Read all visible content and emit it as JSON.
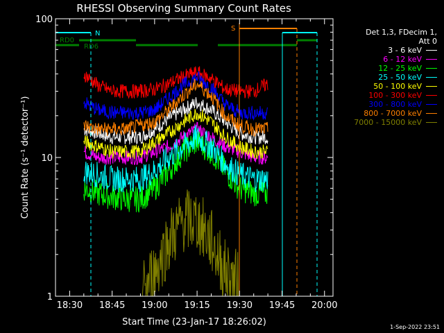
{
  "chart_data": {
    "type": "line",
    "title": "RHESSI Observing Summary Count Rates",
    "xlabel": "Start Time (23-Jan-17 18:26:02)",
    "ylabel": "Count Rate (s⁻¹ detector⁻¹)",
    "yscale": "log",
    "ylim": [
      1,
      100
    ],
    "xlim": [
      "18:25",
      "20:03"
    ],
    "x_ticks": [
      "18:30",
      "18:45",
      "19:00",
      "19:15",
      "19:30",
      "19:45",
      "20:00"
    ],
    "y_ticks": [
      "1",
      "10",
      "100"
    ],
    "grid": false,
    "legend_position": "right",
    "x": [
      "18:35",
      "18:40",
      "18:45",
      "18:50",
      "18:55",
      "19:00",
      "19:05",
      "19:10",
      "19:15",
      "19:20",
      "19:25",
      "19:30",
      "19:35",
      "19:40"
    ],
    "series": [
      {
        "name": "3 - 6 keV",
        "color": "#ffffff",
        "values": [
          16,
          15,
          14,
          14,
          14,
          16,
          19,
          22,
          25,
          22,
          18,
          15,
          14,
          14
        ]
      },
      {
        "name": "6 - 12 keV",
        "color": "#ff00ff",
        "values": [
          11,
          10,
          10,
          10,
          10,
          11,
          12,
          14,
          16,
          14,
          12,
          11,
          10,
          10
        ]
      },
      {
        "name": "12 - 25 keV",
        "color": "#00ff00",
        "values": [
          6,
          5.5,
          5.2,
          5.0,
          5.0,
          6,
          8,
          11,
          13,
          11,
          8,
          6,
          5.5,
          5.5
        ]
      },
      {
        "name": "25 - 50 keV",
        "color": "#00ffff",
        "values": [
          8,
          7.5,
          7,
          7,
          7,
          8,
          10,
          12,
          14,
          12,
          9,
          7.5,
          7,
          7
        ]
      },
      {
        "name": "50 - 100 keV",
        "color": "#ffff00",
        "values": [
          13,
          12,
          11,
          11,
          11,
          13,
          15,
          18,
          21,
          18,
          14,
          12,
          11,
          11
        ]
      },
      {
        "name": "100 - 300 keV",
        "color": "#ff0000",
        "values": [
          40,
          33,
          30,
          30,
          30,
          31,
          34,
          38,
          41,
          37,
          31,
          30,
          30,
          34
        ]
      },
      {
        "name": "300 - 800 keV",
        "color": "#0000ff",
        "values": [
          25,
          22,
          21,
          21,
          21,
          22,
          27,
          33,
          38,
          32,
          24,
          21,
          21,
          21
        ]
      },
      {
        "name": "800 - 7000 keV",
        "color": "#ff8000",
        "values": [
          17,
          16,
          16,
          16,
          17,
          18,
          22,
          28,
          34,
          28,
          20,
          17,
          16,
          16
        ]
      },
      {
        "name": "7000 - 15000 keV",
        "color": "#808000",
        "values": [
          null,
          null,
          null,
          null,
          1.0,
          1.5,
          2.5,
          3.5,
          3.5,
          2.5,
          1.5,
          1.2,
          null,
          null
        ]
      }
    ],
    "legend_header": [
      "Det 1,3, FDecim 1,",
      "Att 0"
    ],
    "flags": [
      {
        "label": "N",
        "color": "#00ffff"
      },
      {
        "label": "S",
        "color": "#ff8000"
      },
      {
        "label": "RD0",
        "color": "#008000"
      },
      {
        "label": "RD6",
        "color": "#008000"
      }
    ],
    "timestamp": "1-Sep-2022 23:51"
  }
}
